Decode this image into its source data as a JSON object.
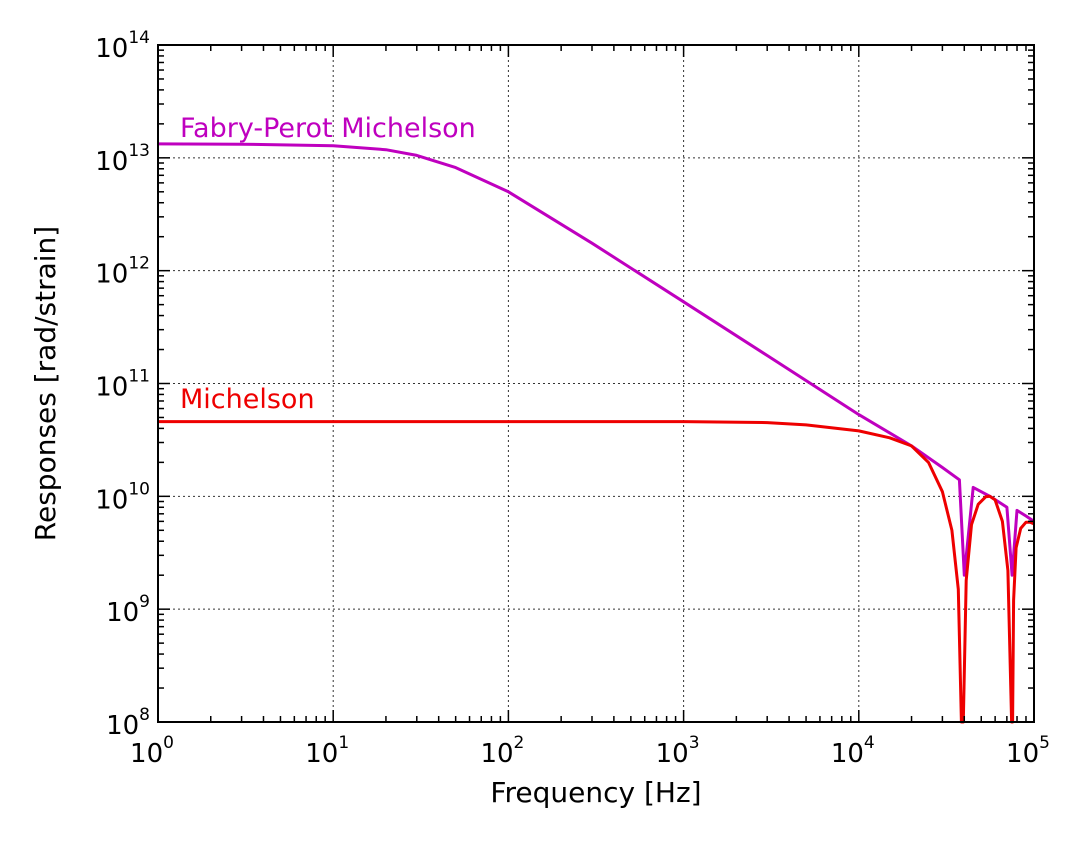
{
  "chart_data": {
    "type": "line",
    "title": "",
    "xlabel": "Frequency [Hz]",
    "ylabel": "Responses [rad/strain]",
    "x_scale": "log",
    "y_scale": "log",
    "xlim": [
      1,
      100000
    ],
    "ylim": [
      100000000,
      100000000000000
    ],
    "grid": true,
    "x_ticks": [
      {
        "base": "10",
        "exp": "0"
      },
      {
        "base": "10",
        "exp": "1"
      },
      {
        "base": "10",
        "exp": "2"
      },
      {
        "base": "10",
        "exp": "3"
      },
      {
        "base": "10",
        "exp": "4"
      },
      {
        "base": "10",
        "exp": "5"
      }
    ],
    "y_ticks": [
      {
        "base": "10",
        "exp": "8"
      },
      {
        "base": "10",
        "exp": "9"
      },
      {
        "base": "10",
        "exp": "10"
      },
      {
        "base": "10",
        "exp": "11"
      },
      {
        "base": "10",
        "exp": "12"
      },
      {
        "base": "10",
        "exp": "13"
      },
      {
        "base": "10",
        "exp": "14"
      }
    ],
    "series": [
      {
        "name": "Fabry-Perot Michelson",
        "color": "#bf00bf",
        "x": [
          1,
          3,
          10,
          20,
          30,
          50,
          100,
          300,
          1000,
          3000,
          10000,
          20000,
          30000,
          37500,
          40000,
          45000,
          56000,
          70000,
          75000,
          80000,
          90000,
          100000
        ],
        "y": [
          13300000000000,
          13200000000000,
          12800000000000,
          11800000000000,
          10500000000000,
          8200000000000,
          5000000000000,
          1750000000000,
          530000000000,
          177000000000,
          53000000000,
          28000000000,
          18000000000,
          14000000000,
          2000000000,
          12000000000,
          10000000000,
          8000000000,
          2000000000,
          7500000000,
          6700000000,
          6000000000
        ]
      },
      {
        "name": "Michelson",
        "color": "#ee0000",
        "x": [
          1,
          10,
          100,
          1000,
          3000,
          5000,
          10000,
          15000,
          20000,
          25000,
          30000,
          34000,
          37000,
          38500,
          39500,
          41000,
          44000,
          48000,
          53000,
          56000,
          60000,
          66000,
          71000,
          74500,
          75500,
          76500,
          79000,
          84000,
          90000,
          95000,
          100000
        ],
        "y": [
          46000000000,
          46000000000,
          46000000000,
          46000000000,
          45000000000,
          43000000000,
          38000000000,
          33000000000,
          28000000000,
          20000000000,
          11000000000,
          5000000000,
          1500000000,
          100000000,
          100000000,
          1800000000,
          5600000000,
          8500000000,
          9900000000,
          10000000000,
          9300000000,
          6000000000,
          2200000000,
          100000000,
          100000000,
          1200000000,
          3500000000,
          5200000000,
          5900000000,
          5900000000,
          5700000000
        ]
      }
    ]
  }
}
